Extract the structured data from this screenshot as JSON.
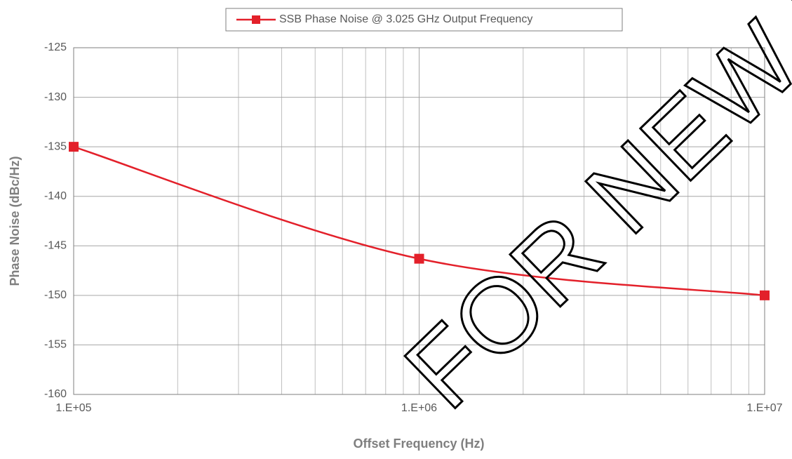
{
  "chart_data": {
    "type": "line",
    "xlabel": "Offset Frequency (Hz)",
    "ylabel": "Phase Noise (dBc/Hz)",
    "x": [
      100000,
      1000000,
      10000000
    ],
    "series": [
      {
        "name": "SSB Phase Noise @ 3.025 GHz Output Frequency",
        "color": "#e3202a",
        "values": [
          -135,
          -146.3,
          -150
        ]
      }
    ],
    "xlim": [
      100000,
      10000000
    ],
    "xticks": [
      {
        "value": 100000,
        "label": "1.E+05"
      },
      {
        "value": 1000000,
        "label": "1.E+06"
      },
      {
        "value": 10000000,
        "label": "1.E+07"
      }
    ],
    "ylim": [
      -160,
      -125
    ],
    "yticks": [
      -160,
      -155,
      -150,
      -145,
      -140,
      -135,
      -130,
      -125
    ],
    "xscale": "log",
    "grid": true,
    "legend": "top",
    "annotations": [
      "FOR NEW DES"
    ]
  }
}
